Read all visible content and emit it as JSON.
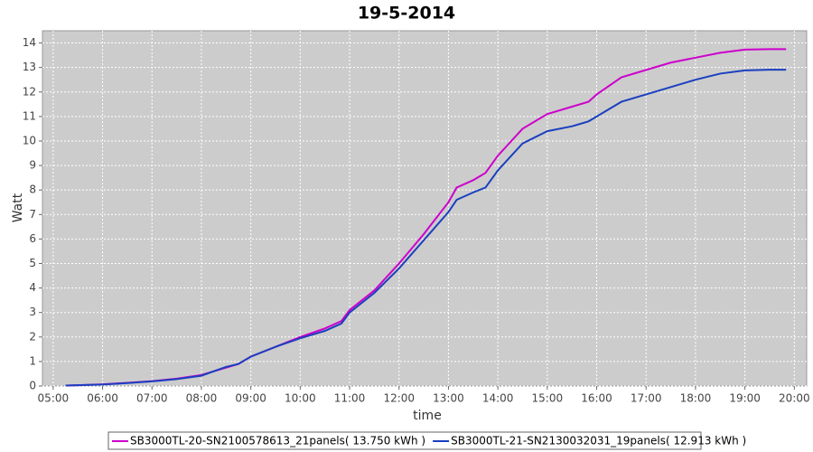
{
  "chart_data": {
    "type": "line",
    "title": "19-5-2014",
    "x_label": "time",
    "y_label": "Watt",
    "x": [
      "05:15",
      "05:30",
      "06:00",
      "06:30",
      "07:00",
      "07:30",
      "08:00",
      "08:30",
      "08:45",
      "09:00",
      "09:30",
      "10:00",
      "10:30",
      "10:50",
      "11:00",
      "11:30",
      "12:00",
      "12:30",
      "13:00",
      "13:10",
      "13:30",
      "13:45",
      "14:00",
      "14:30",
      "15:00",
      "15:30",
      "15:50",
      "16:00",
      "16:30",
      "17:00",
      "17:30",
      "18:00",
      "18:30",
      "19:00",
      "19:30",
      "19:50"
    ],
    "series": [
      {
        "name": "SB3000TL-20-SN2100578613_21panels( 13.750 kWh )",
        "color": "#cc00cc",
        "values": [
          0.02,
          0.03,
          0.07,
          0.13,
          0.2,
          0.3,
          0.45,
          0.75,
          0.9,
          1.2,
          1.6,
          2.0,
          2.35,
          2.65,
          3.1,
          3.9,
          5.0,
          6.2,
          7.5,
          8.1,
          8.4,
          8.7,
          9.4,
          10.5,
          11.1,
          11.4,
          11.6,
          11.9,
          12.6,
          12.9,
          13.2,
          13.4,
          13.6,
          13.73,
          13.75,
          13.75
        ]
      },
      {
        "name": "SB3000TL-21-SN2130032031_19panels( 12.913 kWh )",
        "color": "#1a3fbf",
        "values": [
          0.02,
          0.03,
          0.06,
          0.12,
          0.19,
          0.28,
          0.42,
          0.78,
          0.9,
          1.2,
          1.6,
          1.95,
          2.25,
          2.55,
          3.0,
          3.8,
          4.8,
          5.95,
          7.1,
          7.6,
          7.9,
          8.1,
          8.8,
          9.9,
          10.4,
          10.6,
          10.8,
          11.0,
          11.6,
          11.9,
          12.2,
          12.5,
          12.75,
          12.88,
          12.91,
          12.91
        ]
      }
    ],
    "xlim": [
      "04:47",
      "20:15"
    ],
    "xticks": [
      "05:00",
      "06:00",
      "07:00",
      "08:00",
      "09:00",
      "10:00",
      "11:00",
      "12:00",
      "13:00",
      "14:00",
      "15:00",
      "16:00",
      "17:00",
      "18:00",
      "19:00",
      "20:00"
    ],
    "ylim": [
      0,
      14.5
    ],
    "yticks": [
      0,
      1,
      2,
      3,
      4,
      5,
      6,
      7,
      8,
      9,
      10,
      11,
      12,
      13,
      14
    ],
    "grid": true,
    "legend": "bottom"
  }
}
